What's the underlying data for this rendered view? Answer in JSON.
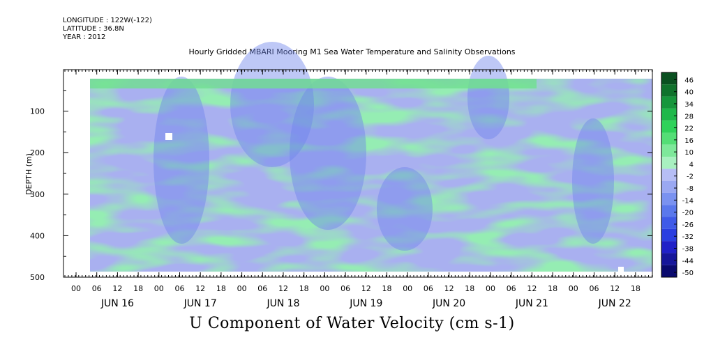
{
  "header": {
    "longitude": "LONGITUDE : 122W(-122)",
    "latitude": "LATITUDE : 36.8N",
    "year": "YEAR : 2012"
  },
  "chart_data": {
    "type": "heatmap",
    "title": "Hourly Gridded MBARI Mooring M1 Sea Water Temperature and Salinity Observations",
    "xlabel": "U Component of Water Velocity (cm s-1)",
    "ylabel": "DEPTH (m)",
    "ylim": [
      500,
      0
    ],
    "yticks": [
      100,
      200,
      300,
      400,
      500
    ],
    "hour_ticks": [
      "00",
      "06",
      "12",
      "18",
      "00",
      "06",
      "12",
      "18",
      "00",
      "06",
      "12",
      "18",
      "00",
      "06",
      "12",
      "18",
      "00",
      "06",
      "12",
      "18",
      "00",
      "06",
      "12",
      "18",
      "00",
      "06",
      "12",
      "18"
    ],
    "day_labels": [
      "JUN 16",
      "JUN 17",
      "JUN 18",
      "JUN 19",
      "JUN 20",
      "JUN 21",
      "JUN 22"
    ],
    "colorbar": {
      "levels": [
        -50,
        -44,
        -38,
        -32,
        -26,
        -20,
        -14,
        -8,
        -2,
        4,
        10,
        16,
        22,
        28,
        34,
        40,
        46
      ],
      "colors": [
        "#0a0a6e",
        "#16169a",
        "#2020c8",
        "#2a3ee0",
        "#3f5ae8",
        "#5a78ec",
        "#7a92f0",
        "#9aa8f2",
        "#b6bef5",
        "#a8f0c0",
        "#7ee89a",
        "#54de76",
        "#2fd25a",
        "#1fb84a",
        "#17963c",
        "#10722c",
        "#0a5020"
      ]
    },
    "grid": false,
    "legend": "right colorbar"
  }
}
